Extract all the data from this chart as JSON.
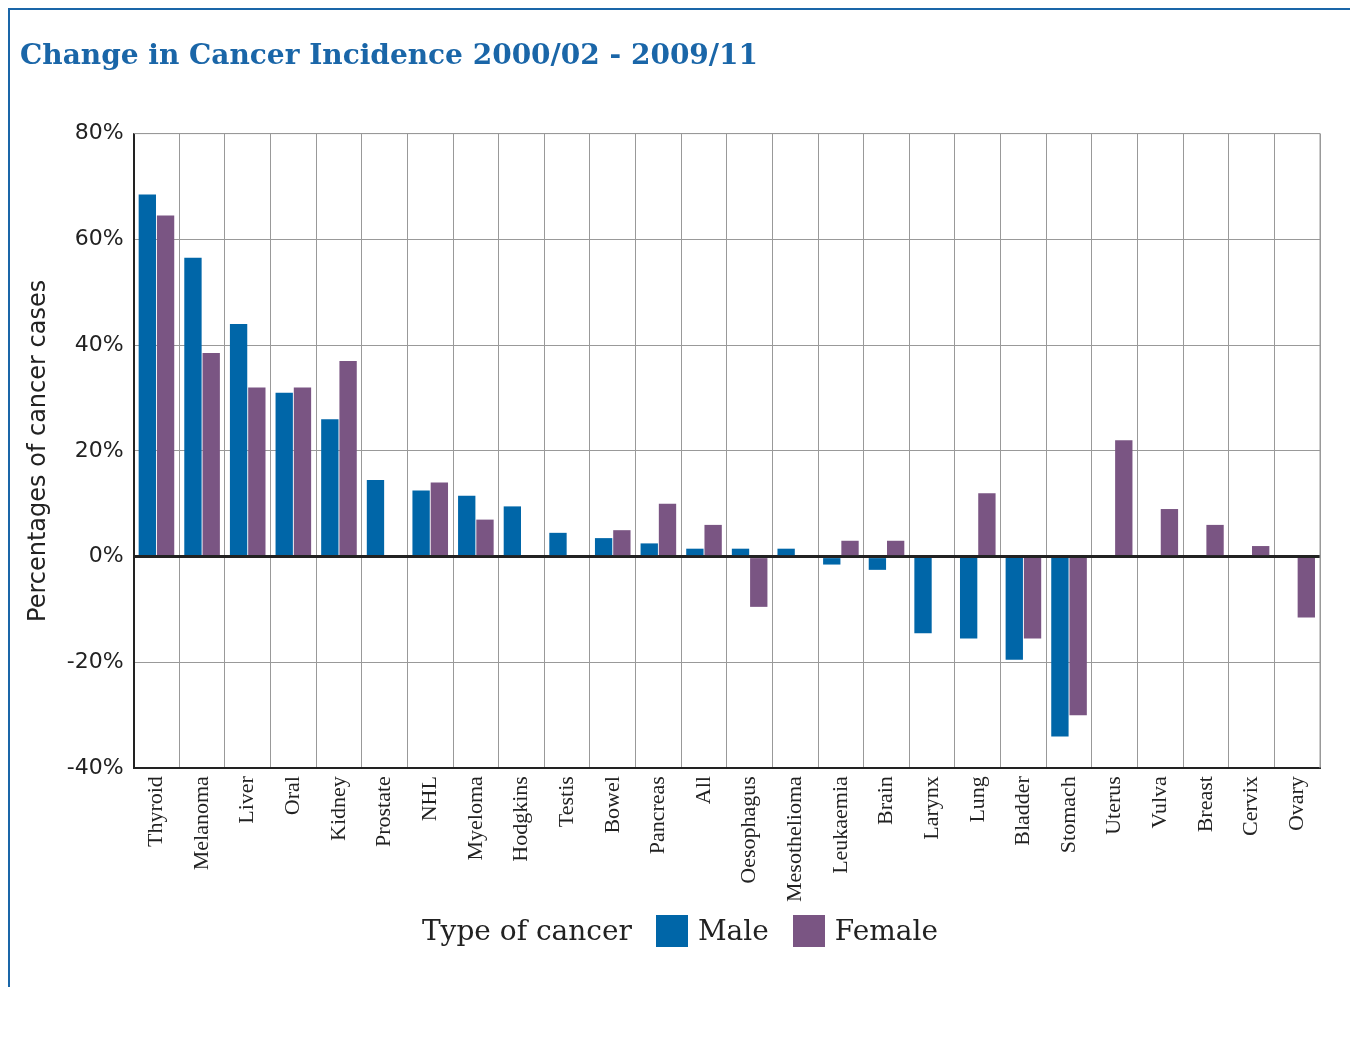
{
  "chart_data": {
    "type": "bar",
    "title": "Change in Cancer Incidence 2000/02 - 2009/11",
    "ylabel": "Percentages of cancer cases",
    "legend_title": "Type of cancer",
    "categories": [
      "Thyroid",
      "Melanoma",
      "Liver",
      "Oral",
      "Kidney",
      "Prostate",
      "NHL",
      "Myeloma",
      "Hodgkins",
      "Testis",
      "Bowel",
      "Pancreas",
      "All",
      "Oesophagus",
      "Mesothelioma",
      "Leukaemia",
      "Brain",
      "Larynx",
      "Lung",
      "Bladder",
      "Stomach",
      "Uterus",
      "Vulva",
      "Breast",
      "Cervix",
      "Ovary"
    ],
    "series": [
      {
        "name": "Male",
        "color": "#0066a8",
        "values": [
          68.5,
          56.5,
          44,
          31,
          26,
          14.5,
          12.5,
          11.5,
          9.5,
          4.5,
          3.5,
          2.5,
          1.5,
          1.5,
          1.5,
          -1.5,
          -2.5,
          -14.5,
          -15.5,
          -19.5,
          -34,
          null,
          null,
          null,
          null,
          null
        ]
      },
      {
        "name": "Female",
        "color": "#7a5583",
        "values": [
          64.5,
          38.5,
          32,
          32,
          37,
          null,
          14,
          7,
          null,
          null,
          5,
          10,
          6,
          -9.5,
          null,
          3,
          3,
          null,
          12,
          -15.5,
          -30,
          22,
          9,
          6,
          2,
          -11.5
        ]
      }
    ],
    "ylim": [
      -40,
      80
    ],
    "yticks": [
      {
        "value": -40,
        "label": "-40%"
      },
      {
        "value": -20,
        "label": "-20%"
      },
      {
        "value": 0,
        "label": "0%"
      },
      {
        "value": 20,
        "label": "20%"
      },
      {
        "value": 40,
        "label": "40%"
      },
      {
        "value": 60,
        "label": "60%"
      },
      {
        "value": 80,
        "label": "80%"
      }
    ],
    "grid": true,
    "legend": "bottom"
  }
}
